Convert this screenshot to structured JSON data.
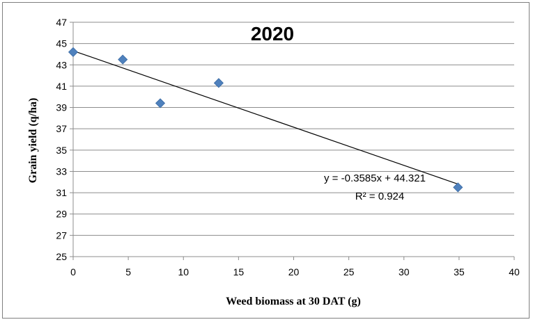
{
  "chart_data": {
    "type": "scatter",
    "title": "2020",
    "xlabel": "Weed  biomass at 30 DAT (g)",
    "ylabel": "Grain yield (q/ha)",
    "xlim": [
      0,
      40
    ],
    "ylim": [
      25,
      47
    ],
    "xticks": [
      0,
      5,
      10,
      15,
      20,
      25,
      30,
      35,
      40
    ],
    "yticks": [
      25,
      27,
      29,
      31,
      33,
      35,
      37,
      39,
      41,
      43,
      45,
      47
    ],
    "grid": "horizontal",
    "series": [
      {
        "points": [
          {
            "x": 0,
            "y": 44.2
          },
          {
            "x": 4.5,
            "y": 43.5
          },
          {
            "x": 7.9,
            "y": 39.4
          },
          {
            "x": 13.2,
            "y": 41.3
          },
          {
            "x": 34.9,
            "y": 31.5
          }
        ],
        "color": "#4f81bd",
        "marker": "diamond"
      }
    ],
    "trendline": {
      "slope": -0.3585,
      "intercept": 44.321,
      "x_range": [
        0,
        34.9
      ],
      "color": "#000000"
    },
    "annotations": [
      "y = -0.3585x + 44.321",
      "R² = 0.924"
    ]
  }
}
